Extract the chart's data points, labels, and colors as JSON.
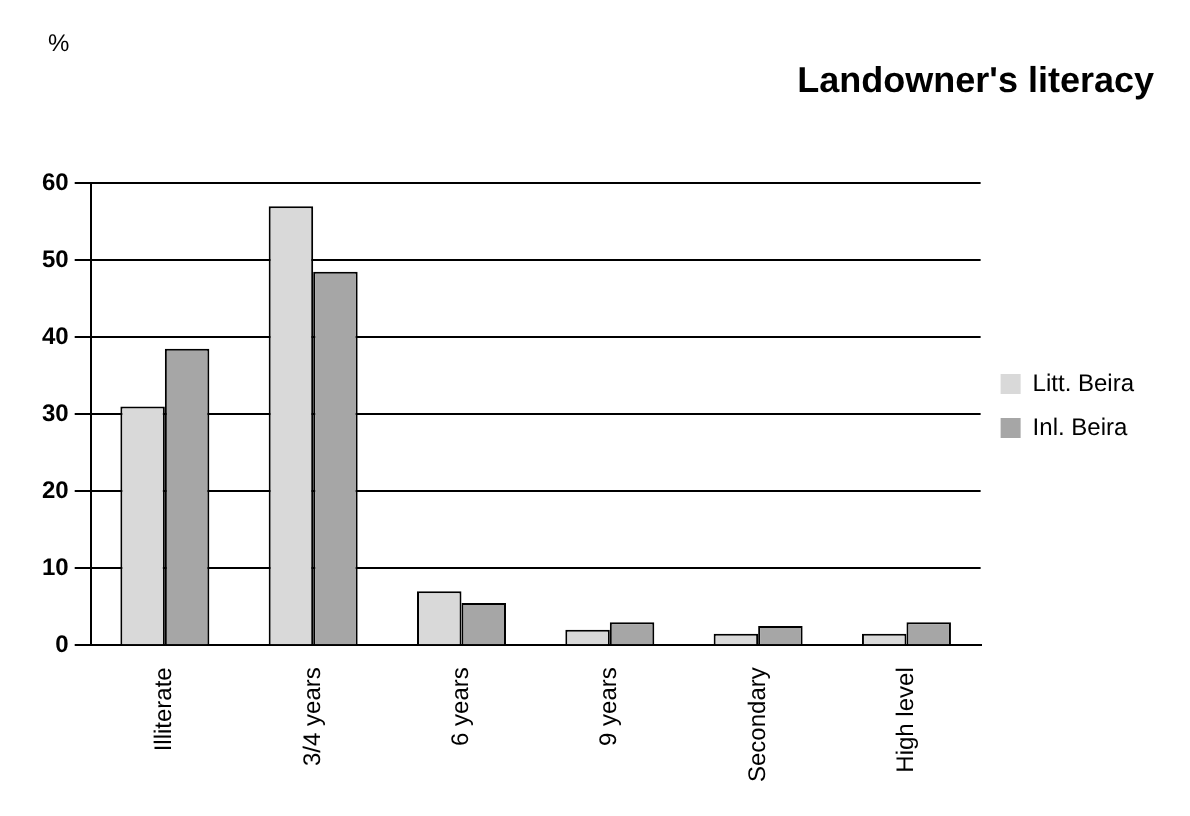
{
  "chart_data": {
    "type": "bar",
    "title": "Landowner's literacy",
    "ylabel": "%",
    "categories": [
      "Illiterate",
      "3/4 years",
      "6 years",
      "9 years",
      "Secondary",
      "High level"
    ],
    "series": [
      {
        "name": "Litt. Beira",
        "color": "#d9d9d9",
        "values": [
          31,
          57,
          7,
          2,
          1.5,
          1.5
        ]
      },
      {
        "name": "Inl. Beira",
        "color": "#a6a6a6",
        "values": [
          38.5,
          48.5,
          5.5,
          3,
          2.5,
          3
        ]
      }
    ],
    "ylim": [
      0,
      60
    ],
    "yticks": [
      0,
      10,
      20,
      30,
      40,
      50,
      60
    ],
    "grid": "y",
    "legend": "right"
  }
}
